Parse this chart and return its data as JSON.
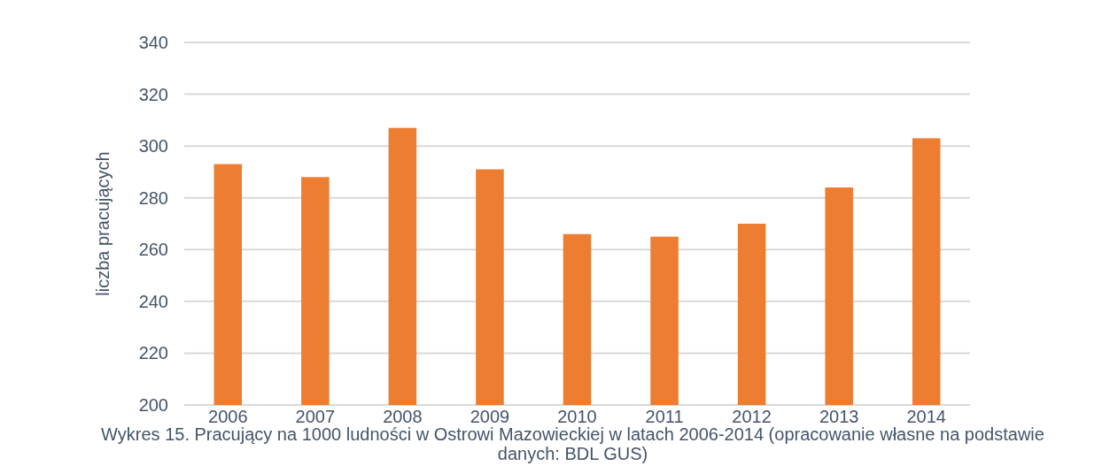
{
  "chart_data": {
    "type": "bar",
    "title": "Wykres 15. Pracujący na 1000 ludności w Ostrowi Mazowieckiej w latach 2006-2014 (opracowanie własne na podstawie danych: BDL GUS)",
    "ylabel": "liczba pracujących",
    "categories": [
      "2006",
      "2007",
      "2008",
      "2009",
      "2010",
      "2011",
      "2012",
      "2013",
      "2014"
    ],
    "values": [
      293,
      288,
      307,
      291,
      266,
      265,
      270,
      284,
      303
    ],
    "color": "#ed7d31",
    "ylim": [
      200,
      340
    ],
    "yticks": [
      200,
      220,
      240,
      260,
      280,
      300,
      320,
      340
    ],
    "grid": "y"
  }
}
